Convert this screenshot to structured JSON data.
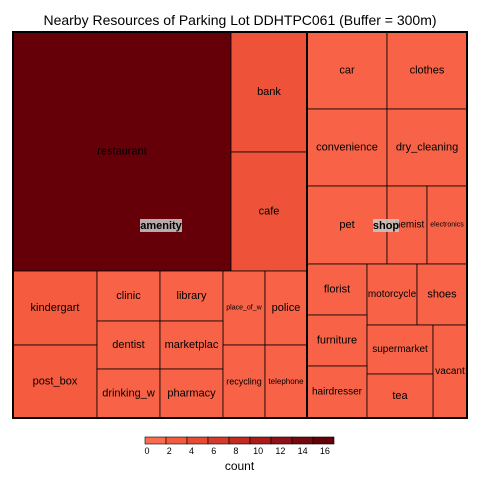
{
  "chart_data": {
    "type": "treemap",
    "title": "Nearby Resources of Parking Lot DDHTPC061 (Buffer = 300m)",
    "groups": [
      {
        "name": "amenity",
        "children": [
          {
            "label": "restaurant",
            "value": 17
          },
          {
            "label": "bank",
            "value": 3
          },
          {
            "label": "cafe",
            "value": 3
          },
          {
            "label": "kindergart",
            "value": 2
          },
          {
            "label": "post_box",
            "value": 2
          },
          {
            "label": "clinic",
            "value": 1
          },
          {
            "label": "library",
            "value": 1
          },
          {
            "label": "place_of_w",
            "value": 1
          },
          {
            "label": "police",
            "value": 1
          },
          {
            "label": "dentist",
            "value": 1
          },
          {
            "label": "marketplac",
            "value": 1
          },
          {
            "label": "drinking_w",
            "value": 1
          },
          {
            "label": "pharmacy",
            "value": 1
          },
          {
            "label": "recycling",
            "value": 1
          },
          {
            "label": "telephone",
            "value": 1
          }
        ]
      },
      {
        "name": "shop",
        "children": [
          {
            "label": "car",
            "value": 1
          },
          {
            "label": "clothes",
            "value": 1
          },
          {
            "label": "convenience",
            "value": 1
          },
          {
            "label": "dry_cleaning",
            "value": 1
          },
          {
            "label": "pet",
            "value": 1
          },
          {
            "label": "chemist",
            "value": 1
          },
          {
            "label": "electronics",
            "value": 1
          },
          {
            "label": "florist",
            "value": 1
          },
          {
            "label": "motorcycle",
            "value": 1
          },
          {
            "label": "shoes",
            "value": 1
          },
          {
            "label": "furniture",
            "value": 1
          },
          {
            "label": "supermarket",
            "value": 1
          },
          {
            "label": "vacant",
            "value": 1
          },
          {
            "label": "hairdresser",
            "value": 1
          },
          {
            "label": "tea",
            "value": 1
          }
        ]
      }
    ],
    "legend": {
      "title": "count",
      "ticks": [
        0,
        2,
        4,
        6,
        8,
        10,
        12,
        14,
        16
      ],
      "range": [
        0,
        17
      ],
      "position": "bottom",
      "colors": [
        "#fc6b4f",
        "#f35a3e",
        "#e84a33",
        "#d63a2a",
        "#c22a22",
        "#ab1b1c",
        "#901116",
        "#760810",
        "#650009"
      ]
    }
  }
}
